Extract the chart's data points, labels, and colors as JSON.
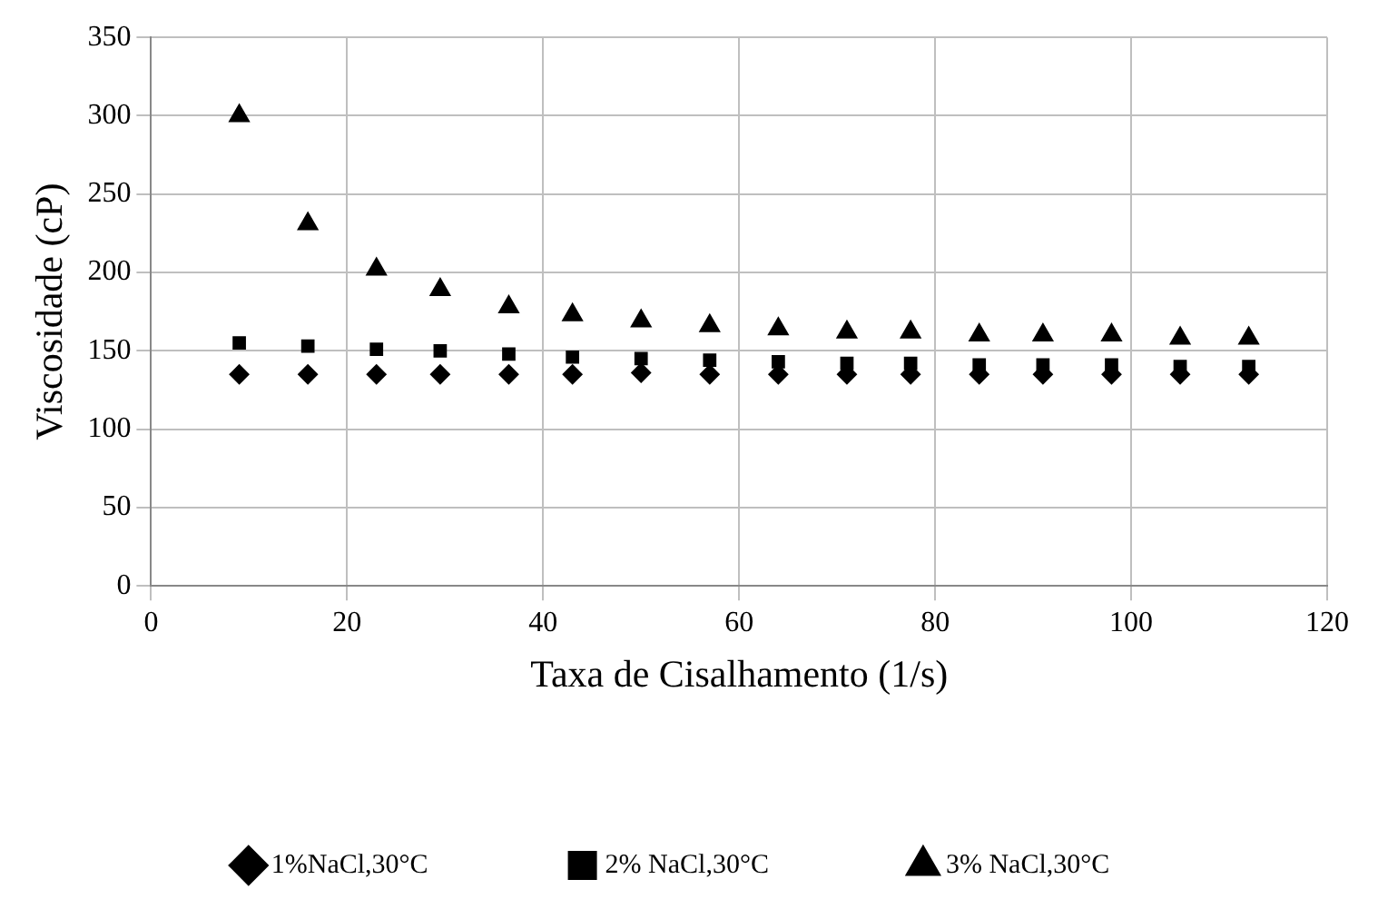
{
  "chart_data": {
    "type": "scatter",
    "xlabel": "Taxa de Cisalhamento (1/s)",
    "ylabel": "Viscosidade (cP)",
    "x": [
      9,
      16,
      23,
      29.5,
      36.5,
      43,
      50,
      57,
      64,
      71,
      77.5,
      84.5,
      91,
      98,
      105,
      112
    ],
    "series": [
      {
        "name": "1%NaCl,30°C",
        "color": "#000000",
        "marker": "diamond",
        "values": [
          135,
          135,
          135,
          135,
          135,
          135,
          136,
          135,
          135,
          135,
          135,
          135,
          135,
          135,
          135,
          135
        ]
      },
      {
        "name": "2% NaCl,30°C",
        "color": "#000000",
        "marker": "square",
        "values": [
          155,
          153,
          151,
          150,
          148,
          146,
          145,
          144,
          143,
          142,
          142,
          141,
          141,
          141,
          140,
          140
        ]
      },
      {
        "name": "3% NaCl,30°C",
        "color": "#000000",
        "marker": "triangle",
        "values": [
          300,
          231,
          202,
          189,
          178,
          173,
          169,
          166,
          164,
          162,
          162,
          160,
          160,
          160,
          158,
          158
        ]
      }
    ],
    "xlim": [
      0,
      120
    ],
    "xticks": [
      0,
      20,
      40,
      60,
      80,
      100,
      120
    ],
    "ylim": [
      0,
      350
    ],
    "yticks": [
      0,
      50,
      100,
      150,
      200,
      250,
      300,
      350
    ],
    "grid": true,
    "legend": "bottom"
  }
}
